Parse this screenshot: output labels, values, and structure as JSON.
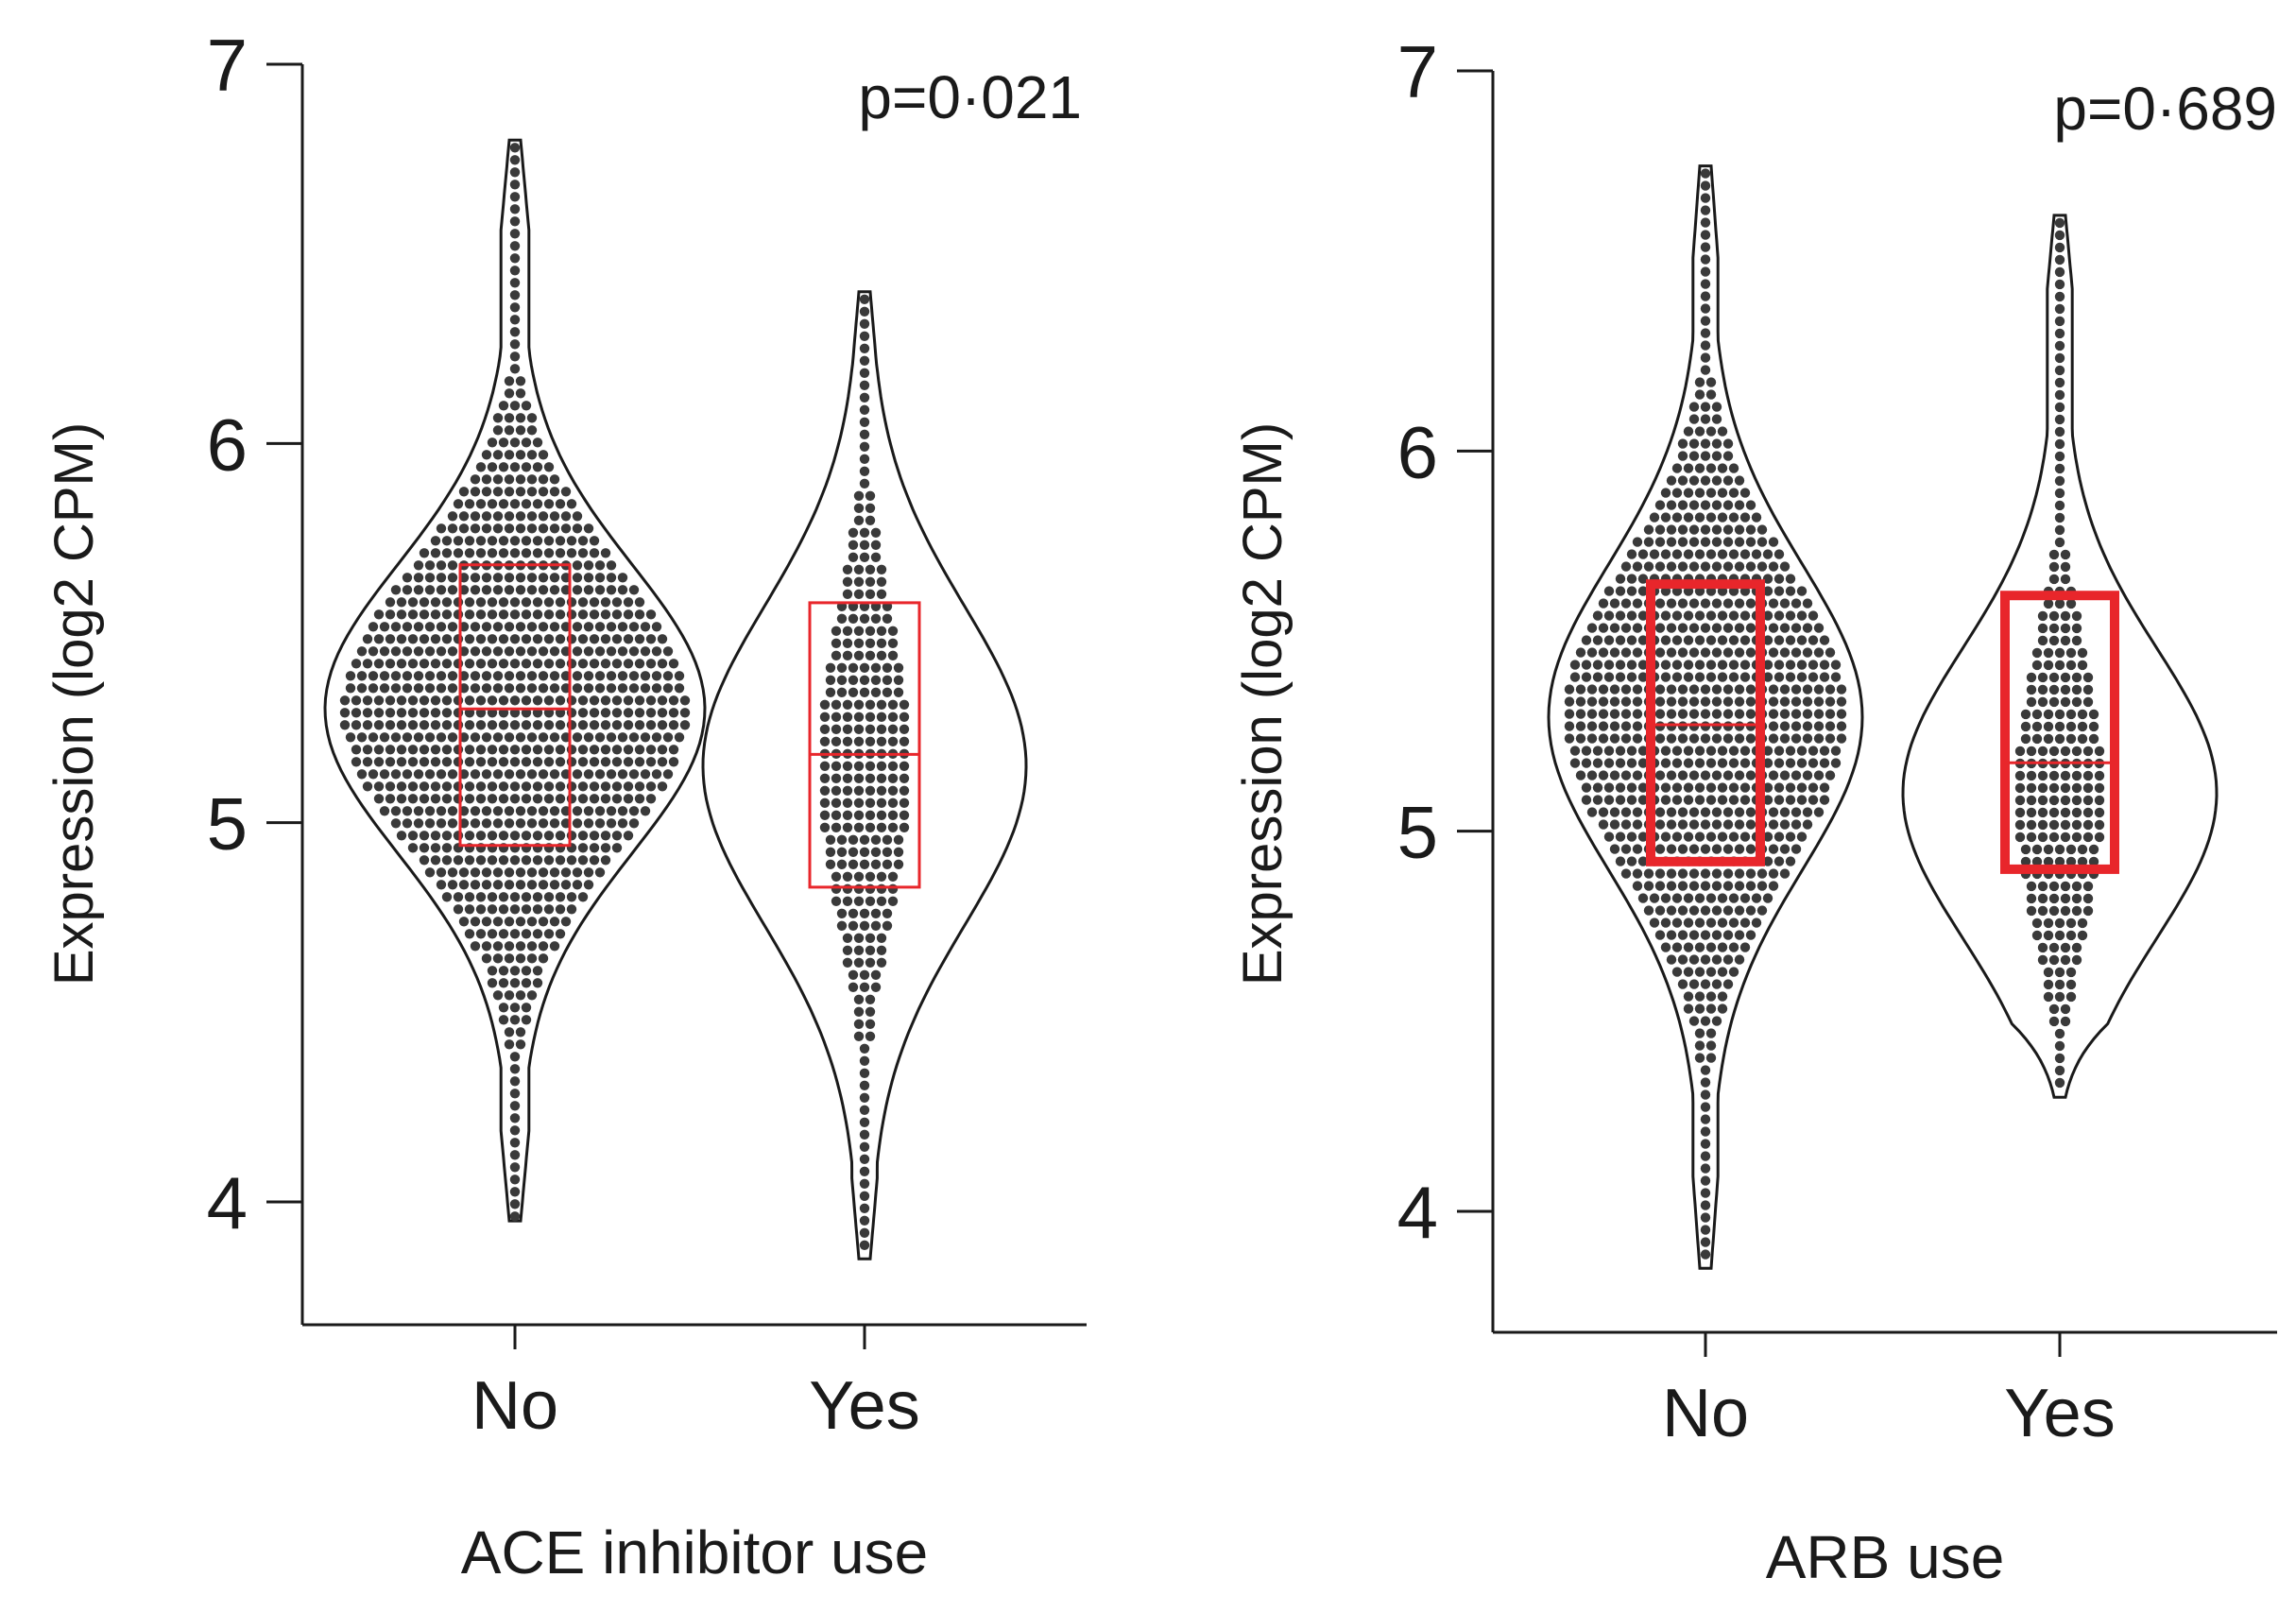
{
  "chart_data": [
    {
      "type": "violin",
      "title": "",
      "xlabel": "ACE inhibitor use",
      "ylabel": "Expression (log2 CPM)",
      "ylim": [
        3.7,
        7.0
      ],
      "yticks": [
        4,
        5,
        6,
        7
      ],
      "ytick_labels": [
        "4",
        "5",
        "6",
        "7"
      ],
      "categories": [
        "No",
        "Yes"
      ],
      "p_value": "p=0·021",
      "groups": [
        {
          "name": "No",
          "min": 3.95,
          "max": 6.8,
          "q1": 4.94,
          "median": 5.3,
          "q3": 5.68,
          "center": 5.3,
          "spread": 0.38
        },
        {
          "name": "Yes",
          "min": 3.85,
          "max": 6.4,
          "q1": 4.83,
          "median": 5.18,
          "q3": 5.58,
          "center": 5.15,
          "spread": 0.42
        }
      ]
    },
    {
      "type": "violin",
      "title": "",
      "xlabel": "ARB use",
      "ylabel": "Expression (log2 CPM)",
      "ylim": [
        3.7,
        7.0
      ],
      "yticks": [
        4,
        5,
        6,
        7
      ],
      "ytick_labels": [
        "4",
        "5",
        "6",
        "7"
      ],
      "categories": [
        "No",
        "Yes"
      ],
      "p_value": "p=0·689",
      "groups": [
        {
          "name": "No",
          "min": 3.85,
          "max": 6.75,
          "q1": 4.92,
          "median": 5.28,
          "q3": 5.65,
          "center": 5.3,
          "spread": 0.4
        },
        {
          "name": "Yes",
          "min": 4.3,
          "max": 6.62,
          "q1": 4.9,
          "median": 5.18,
          "q3": 5.62,
          "center": 5.1,
          "spread": 0.38
        }
      ]
    }
  ],
  "colors": {
    "points": "#3a3a3a",
    "outline": "#1a1a1a",
    "box": "#e8262b"
  }
}
